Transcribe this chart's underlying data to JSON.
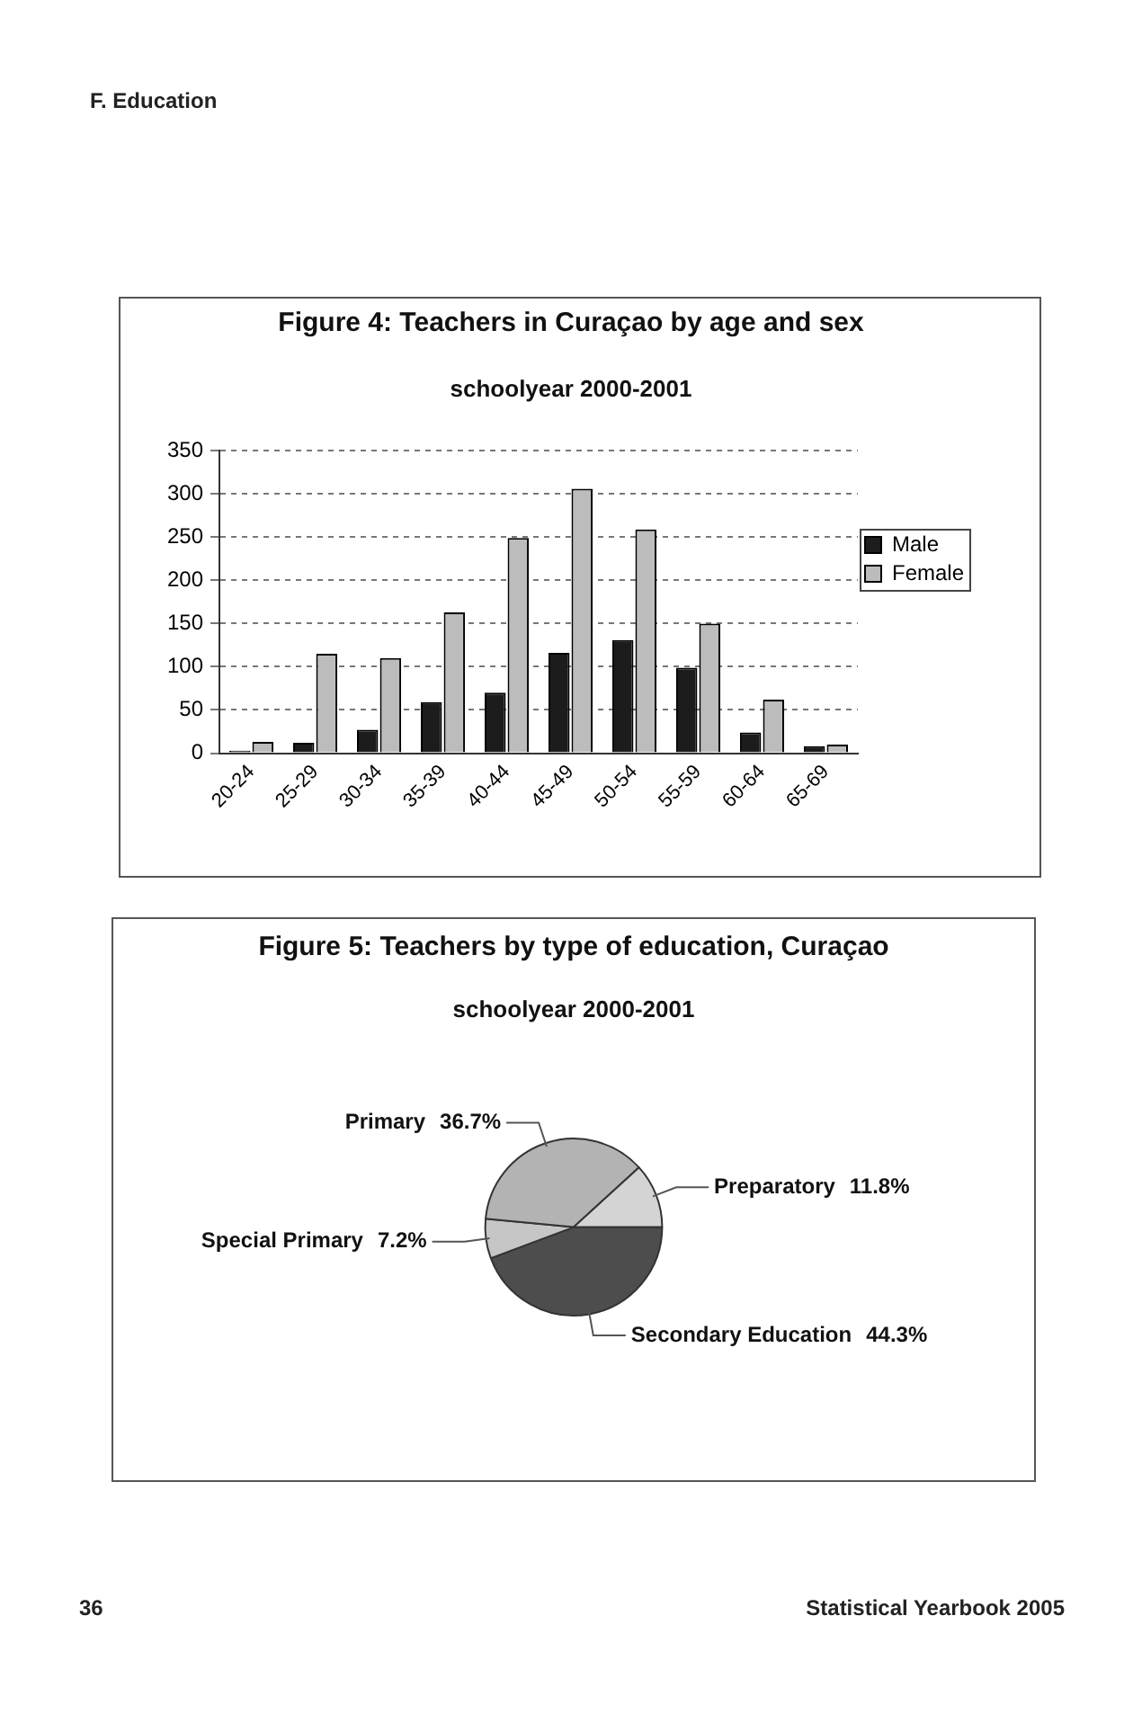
{
  "chart_data": [
    {
      "type": "bar",
      "title": "Figure 4: Teachers in Curaçao by age and sex",
      "subtitle": "schoolyear 2000-2001",
      "categories": [
        "20-24",
        "25-29",
        "30-34",
        "35-39",
        "40-44",
        "45-49",
        "50-54",
        "55-59",
        "60-64",
        "65-69"
      ],
      "series": [
        {
          "name": "Male",
          "color": "#1c1c1c",
          "values": [
            3,
            12,
            27,
            59,
            70,
            116,
            131,
            99,
            24,
            8
          ]
        },
        {
          "name": "Female",
          "color": "#bcbcbc",
          "values": [
            13,
            115,
            110,
            163,
            249,
            306,
            259,
            150,
            62,
            10
          ]
        }
      ],
      "ylim": [
        0,
        350
      ],
      "yticks": [
        0,
        50,
        100,
        150,
        200,
        250,
        300,
        350
      ],
      "grid": "y",
      "legend": "right",
      "annotations": [
        "F. Education"
      ]
    },
    {
      "type": "pie",
      "title": "Figure 5: Teachers by type of education, Curaçao",
      "subtitle": "schoolyear 2000-2001",
      "categories": [
        "Secondary Education",
        "Special Primary",
        "Primary",
        "Preparatory"
      ],
      "values": [
        44.3,
        7.2,
        36.7,
        11.8
      ],
      "colors": [
        "#4d4d4d",
        "#c6c6c6",
        "#b3b3b3",
        "#d4d4d4"
      ],
      "value_labels": [
        "44.3%",
        "7.2%",
        "36.7%",
        "11.8%"
      ],
      "annotations": [
        "36",
        "Statistical Yearbook 2005"
      ]
    }
  ]
}
